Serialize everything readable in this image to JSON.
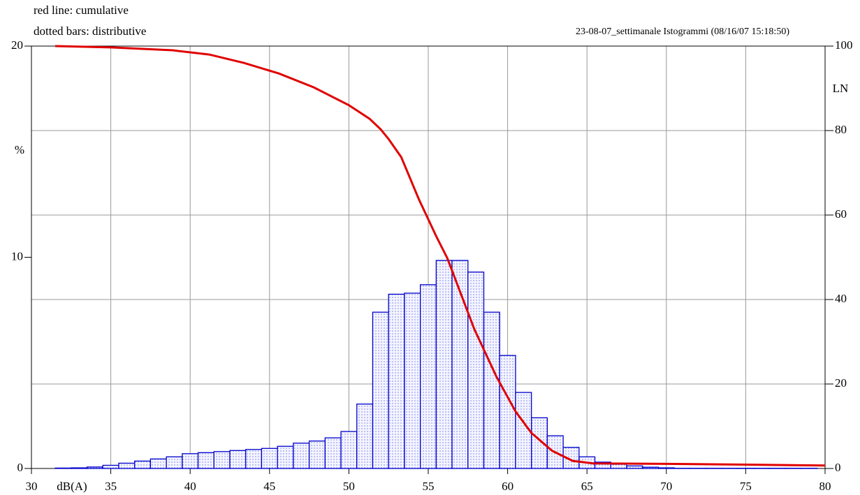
{
  "chart_data": {
    "type": "histogram",
    "title": "23-08-07_settimanale Istogrammi (08/16/07 15:18:50)",
    "annotations": [
      "red line: cumulative",
      "dotted bars: distributive"
    ],
    "xlabel": "dB(A)",
    "ylabel": "%",
    "y2label": "LN",
    "bins": [
      31.5,
      32.5,
      33.5,
      34.5,
      35.5,
      36.5,
      37.5,
      38.5,
      39.5,
      40.5,
      41.5,
      42.5,
      43.5,
      44.5,
      45.5,
      46.5,
      47.5,
      48.5,
      49.5,
      50.5,
      51.5,
      52.5,
      53.5,
      54.5,
      55.5,
      56.5,
      57.5,
      58.5,
      59.5,
      60.5,
      61.5,
      62.5,
      63.5,
      64.5,
      65.5,
      66.5,
      67.5,
      68.5,
      69.5,
      70.5,
      71.5,
      72.5,
      73.5,
      74.5,
      75.5,
      76.5,
      77.5,
      78.5,
      79.5
    ],
    "values": [
      0.02,
      0.03,
      0.07,
      0.15,
      0.25,
      0.35,
      0.45,
      0.55,
      0.7,
      0.75,
      0.8,
      0.85,
      0.9,
      0.95,
      1.05,
      1.2,
      1.3,
      1.45,
      1.75,
      3.05,
      7.4,
      8.25,
      8.3,
      8.7,
      9.85,
      9.85,
      9.3,
      7.4,
      5.35,
      3.6,
      2.4,
      1.55,
      1.0,
      0.55,
      0.3,
      0.2,
      0.12,
      0.06,
      0.03,
      0.01,
      0.01,
      0.01,
      0.01,
      0.01,
      0.01,
      0.01,
      0.01,
      0.01
    ],
    "color": "#0000cc",
    "line": {
      "axis": "y2",
      "color": "#e00000",
      "x": [
        31.5,
        35,
        38.9,
        41.2,
        43.4,
        45.6,
        47.8,
        50,
        51.3,
        52,
        52.5,
        53.3,
        54.4,
        55.5,
        56.2,
        57.9,
        59.3,
        60.5,
        61.5,
        62.8,
        64.1,
        65.4,
        70,
        75,
        80
      ],
      "values": [
        100,
        99.7,
        99,
        98,
        96,
        93.5,
        90.2,
        86,
        82.8,
        80.3,
        78,
        73.7,
        63.8,
        55,
        49.8,
        33,
        21.7,
        13.5,
        8.4,
        4.2,
        1.8,
        1.2,
        1.1,
        0.9,
        0.7
      ]
    },
    "xlim": [
      30,
      80
    ],
    "xticks": [
      30,
      35,
      40,
      45,
      50,
      55,
      60,
      65,
      70,
      75,
      80
    ],
    "ylim": [
      0,
      20
    ],
    "yticks": [
      0,
      10,
      20
    ],
    "y2lim": [
      0,
      100
    ],
    "y2ticks": [
      0,
      20,
      40,
      60,
      80,
      100
    ],
    "grid": true
  }
}
